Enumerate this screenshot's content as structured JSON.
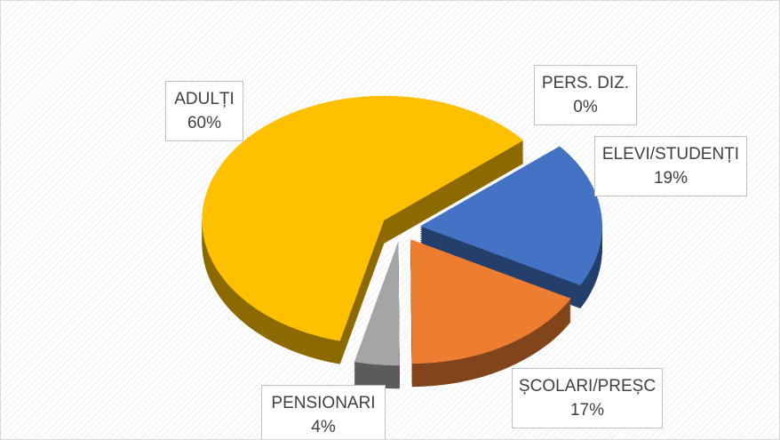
{
  "chart_data": {
    "type": "pie3d",
    "categories": [
      "PERS. DIZ.",
      "ELEVI/STUDENȚI",
      "ȘCOLARI/PREȘC",
      "PENSIONARI",
      "ADULȚI"
    ],
    "values": [
      0,
      19,
      17,
      4,
      60
    ],
    "value_labels": [
      "0%",
      "19%",
      "17%",
      "4%",
      "60%"
    ],
    "colors": [
      "#41719c",
      "#4472c4",
      "#ed7d31",
      "#a5a5a5",
      "#ffc000"
    ]
  }
}
